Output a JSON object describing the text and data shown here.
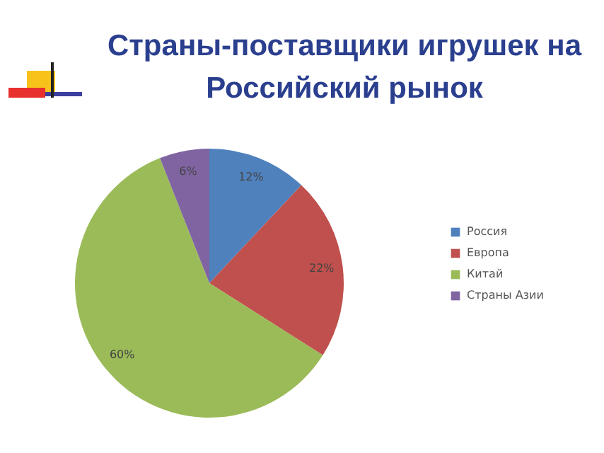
{
  "chart_data": {
    "type": "pie",
    "title": "Страны-поставщики игрушек на Российский рынок",
    "categories": [
      "Россия",
      "Европа",
      "Китай",
      "Страны Азии"
    ],
    "values": [
      12,
      22,
      60,
      6
    ],
    "value_labels": [
      "12%",
      "22%",
      "60%",
      "6%"
    ],
    "colors": [
      "#4f81bd",
      "#c0504d",
      "#9bbb59",
      "#8064a2"
    ],
    "legend": "right"
  }
}
